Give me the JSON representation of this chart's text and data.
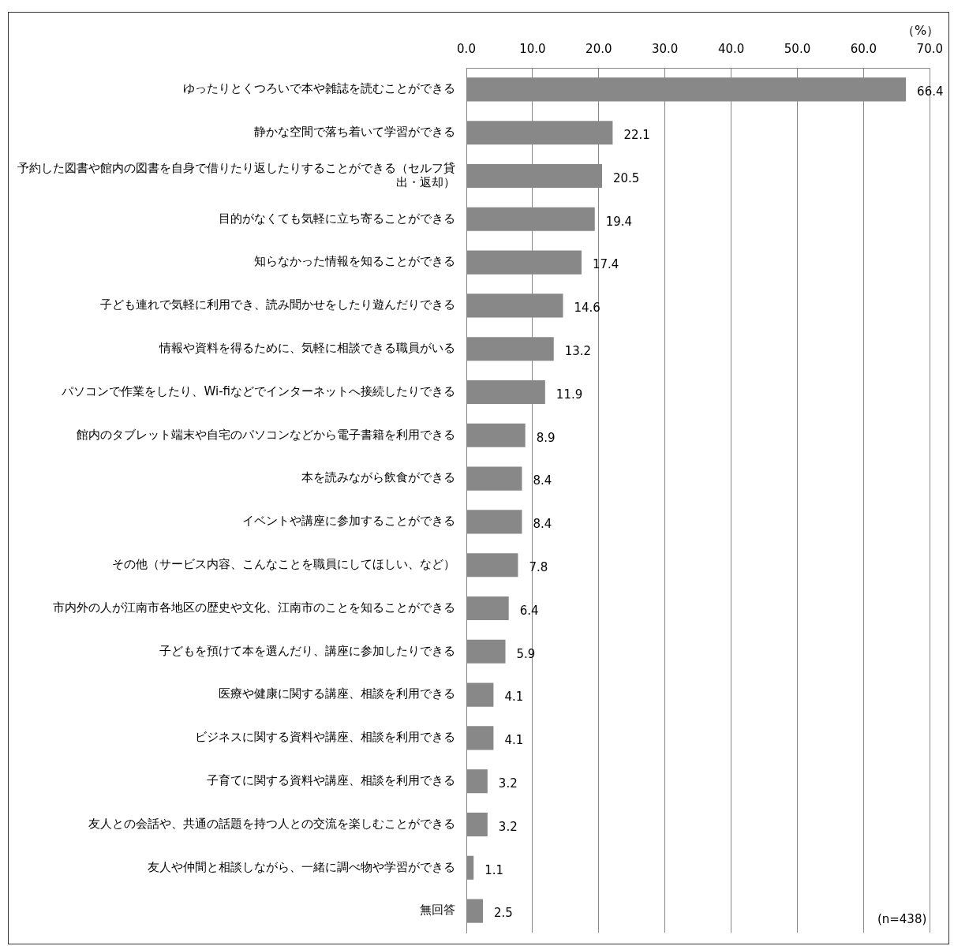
{
  "chart_data": {
    "type": "bar",
    "orientation": "horizontal",
    "xlabel": "（%）",
    "categories": [
      "ゆったりとくつろいで本や雑誌を読むことができる",
      "静かな空間で落ち着いて学習ができる",
      "予約した図書や館内の図書を自身で借りたり返したりすることができる（セルフ貸出・返却）",
      "目的がなくても気軽に立ち寄ることができる",
      "知らなかった情報を知ることができる",
      "子ども連れで気軽に利用でき、読み聞かせをしたり遊んだりできる",
      "情報や資料を得るために、気軽に相談できる職員がいる",
      "パソコンで作業をしたり、Wi-fiなどでインターネットへ接続したりできる",
      "館内のタブレット端末や自宅のパソコンなどから電子書籍を利用できる",
      "本を読みながら飲食ができる",
      "イベントや講座に参加することができる",
      "その他（サービス内容、こんなことを職員にしてほしい、など）",
      "市内外の人が江南市各地区の歴史や文化、江南市のことを知ることができる",
      "子どもを預けて本を選んだり、講座に参加したりできる",
      "医療や健康に関する講座、相談を利用できる",
      "ビジネスに関する資料や講座、相談を利用できる",
      "子育てに関する資料や講座、相談を利用できる",
      "友人との会話や、共通の話題を持つ人との交流を楽しむことができる",
      "友人や仲間と相談しながら、一緒に調べ物や学習ができる",
      "無回答"
    ],
    "values": [
      66.4,
      22.1,
      20.5,
      19.4,
      17.4,
      14.6,
      13.2,
      11.9,
      8.9,
      8.4,
      8.4,
      7.8,
      6.4,
      5.9,
      4.1,
      4.1,
      3.2,
      3.2,
      1.1,
      2.5
    ],
    "color": "#888888",
    "xlim": [
      0,
      70
    ],
    "xticks": [
      {
        "value": 0,
        "label": "0.0"
      },
      {
        "value": 10,
        "label": "10.0"
      },
      {
        "value": 20,
        "label": "20.0"
      },
      {
        "value": 30,
        "label": "30.0"
      },
      {
        "value": 40,
        "label": "40.0"
      },
      {
        "value": 50,
        "label": "50.0"
      },
      {
        "value": 60,
        "label": "60.0"
      },
      {
        "value": 70,
        "label": "70.0"
      }
    ],
    "grid": "x",
    "data_labels": true,
    "annotations": [
      "(n=438)"
    ]
  }
}
